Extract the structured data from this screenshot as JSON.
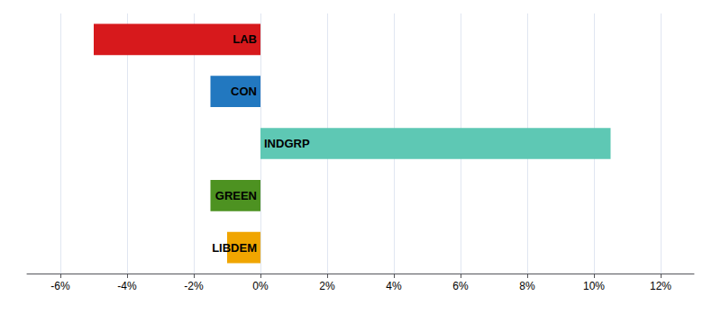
{
  "chart_data": {
    "type": "bar",
    "orientation": "horizontal",
    "categories": [
      "LAB",
      "CON",
      "INDGRP",
      "GREEN",
      "LIBDEM"
    ],
    "values": [
      -5.0,
      -1.5,
      10.5,
      -1.5,
      -1.0
    ],
    "colors": [
      "#d7191c",
      "#2278c0",
      "#5ec8b4",
      "#4d9221",
      "#f0a500"
    ],
    "xlim": [
      -7,
      13
    ],
    "xticks": [
      {
        "value": -6,
        "label": "-6%"
      },
      {
        "value": -4,
        "label": "-4%"
      },
      {
        "value": -2,
        "label": "-2%"
      },
      {
        "value": 0,
        "label": "0%"
      },
      {
        "value": 2,
        "label": "2%"
      },
      {
        "value": 4,
        "label": "4%"
      },
      {
        "value": 6,
        "label": "6%"
      },
      {
        "value": 8,
        "label": "8%"
      },
      {
        "value": 10,
        "label": "10%"
      },
      {
        "value": 12,
        "label": "12%"
      }
    ],
    "grid": true,
    "tick_labels": "x"
  }
}
